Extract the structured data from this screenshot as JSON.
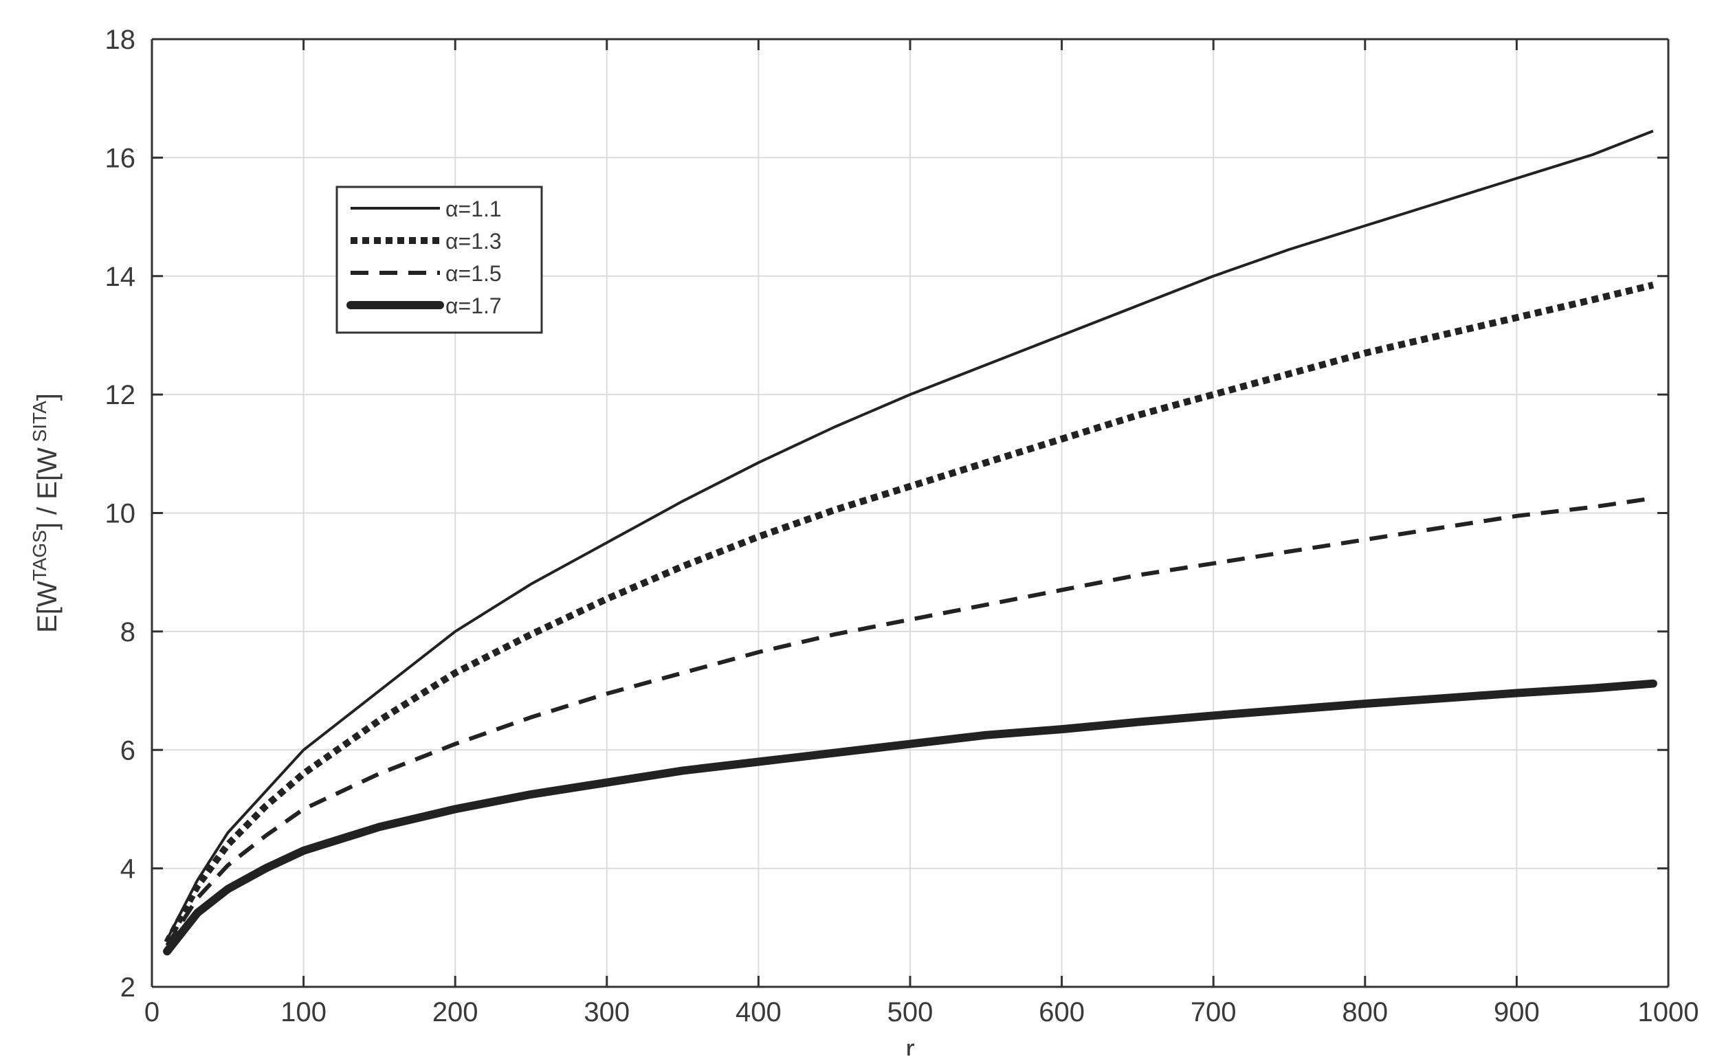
{
  "chart_data": {
    "type": "line",
    "xlabel": "r",
    "ylabel_parts": {
      "base1": "E[W",
      "sup1": "TAGS",
      "mid": "] / E[W",
      "sup2": " SITA",
      "end": "]"
    },
    "xlim": [
      0,
      1000
    ],
    "ylim": [
      2,
      18
    ],
    "xticks": [
      0,
      100,
      200,
      300,
      400,
      500,
      600,
      700,
      800,
      900,
      1000
    ],
    "yticks": [
      2,
      4,
      6,
      8,
      10,
      12,
      14,
      16,
      18
    ],
    "grid": true,
    "legend_position": "top-left",
    "colors": {
      "line": "#222222",
      "grid": "#dcdcdc",
      "axis": "#333333",
      "text": "#3a3a3a"
    },
    "x": [
      10,
      30,
      50,
      75,
      100,
      150,
      200,
      250,
      300,
      350,
      400,
      450,
      500,
      550,
      600,
      650,
      700,
      750,
      800,
      850,
      900,
      950,
      990
    ],
    "series": [
      {
        "name": "α=1.1",
        "style": "thin-solid",
        "values": [
          2.8,
          3.8,
          4.6,
          5.3,
          6.0,
          7.0,
          8.0,
          8.8,
          9.5,
          10.2,
          10.85,
          11.45,
          12.0,
          12.5,
          13.0,
          13.5,
          14.0,
          14.45,
          14.85,
          15.25,
          15.65,
          16.05,
          16.45
        ]
      },
      {
        "name": "α=1.3",
        "style": "dotted",
        "values": [
          2.75,
          3.7,
          4.4,
          5.05,
          5.6,
          6.5,
          7.3,
          7.95,
          8.55,
          9.1,
          9.6,
          10.05,
          10.45,
          10.85,
          11.25,
          11.65,
          12.0,
          12.35,
          12.7,
          13.0,
          13.3,
          13.6,
          13.85
        ]
      },
      {
        "name": "α=1.5",
        "style": "dashed",
        "values": [
          2.7,
          3.5,
          4.05,
          4.55,
          5.0,
          5.6,
          6.1,
          6.55,
          6.95,
          7.3,
          7.65,
          7.95,
          8.2,
          8.45,
          8.7,
          8.95,
          9.15,
          9.35,
          9.55,
          9.75,
          9.95,
          10.1,
          10.25
        ]
      },
      {
        "name": "α=1.7",
        "style": "thick-solid",
        "values": [
          2.6,
          3.25,
          3.65,
          4.0,
          4.3,
          4.7,
          5.0,
          5.25,
          5.45,
          5.65,
          5.8,
          5.95,
          6.1,
          6.25,
          6.35,
          6.47,
          6.58,
          6.68,
          6.78,
          6.87,
          6.96,
          7.04,
          7.12
        ]
      }
    ]
  }
}
